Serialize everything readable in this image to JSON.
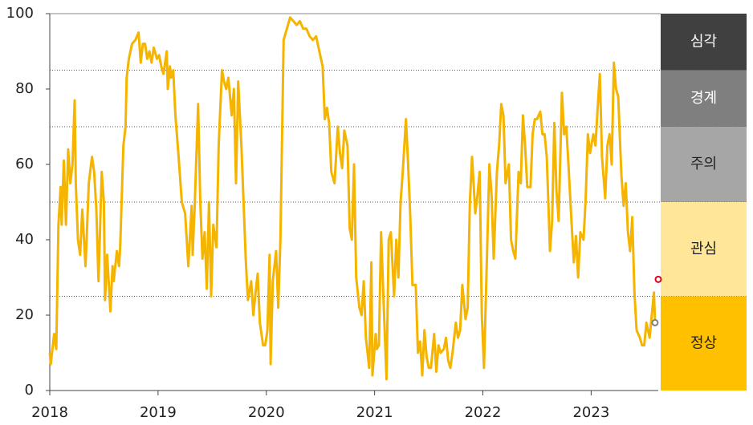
{
  "chart_data": {
    "type": "line",
    "color": "#f5b400",
    "xlim": [
      2018,
      2023.62
    ],
    "xticks": [
      2018,
      2019,
      2020,
      2021,
      2022,
      2023
    ],
    "ylim": [
      0,
      100
    ],
    "yticks": [
      0,
      20,
      40,
      60,
      80,
      100
    ],
    "x": [
      2018.0,
      2018.01,
      2018.04,
      2018.06,
      2018.08,
      2018.1,
      2018.11,
      2018.13,
      2018.15,
      2018.17,
      2018.19,
      2018.21,
      2018.23,
      2018.24,
      2018.26,
      2018.28,
      2018.3,
      2018.33,
      2018.34,
      2018.36,
      2018.39,
      2018.41,
      2018.43,
      2018.45,
      2018.46,
      2018.48,
      2018.5,
      2018.51,
      2018.53,
      2018.56,
      2018.58,
      2018.59,
      2018.62,
      2018.64,
      2018.65,
      2018.68,
      2018.7,
      2018.71,
      2018.73,
      2018.76,
      2018.79,
      2018.82,
      2018.84,
      2018.86,
      2018.88,
      2018.9,
      2018.92,
      2018.94,
      2018.96,
      2018.99,
      2019.01,
      2019.03,
      2019.05,
      2019.08,
      2019.09,
      2019.11,
      2019.12,
      2019.14,
      2019.16,
      2019.19,
      2019.22,
      2019.25,
      2019.28,
      2019.31,
      2019.32,
      2019.34,
      2019.37,
      2019.39,
      2019.41,
      2019.43,
      2019.45,
      2019.47,
      2019.49,
      2019.51,
      2019.54,
      2019.56,
      2019.59,
      2019.61,
      2019.63,
      2019.65,
      2019.68,
      2019.7,
      2019.72,
      2019.74,
      2019.77,
      2019.79,
      2019.81,
      2019.83,
      2019.86,
      2019.88,
      2019.9,
      2019.92,
      2019.94,
      2019.97,
      2019.99,
      2020.01,
      2020.03,
      2020.04,
      2020.06,
      2020.09,
      2020.11,
      2020.13,
      2020.16,
      2020.19,
      2020.22,
      2020.25,
      2020.28,
      2020.31,
      2020.34,
      2020.37,
      2020.4,
      2020.43,
      2020.46,
      2020.49,
      2020.52,
      2020.54,
      2020.56,
      2020.58,
      2020.6,
      2020.63,
      2020.66,
      2020.68,
      2020.7,
      2020.72,
      2020.75,
      2020.77,
      2020.79,
      2020.81,
      2020.83,
      2020.86,
      2020.88,
      2020.9,
      2020.92,
      2020.95,
      2020.97,
      2020.98,
      2021.01,
      2021.02,
      2021.04,
      2021.06,
      2021.09,
      2021.11,
      2021.13,
      2021.15,
      2021.18,
      2021.2,
      2021.22,
      2021.24,
      2021.26,
      2021.29,
      2021.31,
      2021.33,
      2021.35,
      2021.38,
      2021.4,
      2021.42,
      2021.44,
      2021.46,
      2021.48,
      2021.5,
      2021.52,
      2021.55,
      2021.57,
      2021.59,
      2021.61,
      2021.64,
      2021.66,
      2021.68,
      2021.7,
      2021.72,
      2021.75,
      2021.77,
      2021.79,
      2021.81,
      2021.84,
      2021.86,
      2021.88,
      2021.9,
      2021.93,
      2021.95,
      2021.97,
      2021.99,
      2022.01,
      2022.04,
      2022.06,
      2022.08,
      2022.1,
      2022.13,
      2022.15,
      2022.17,
      2022.19,
      2022.21,
      2022.24,
      2022.26,
      2022.28,
      2022.3,
      2022.33,
      2022.35,
      2022.37,
      2022.39,
      2022.41,
      2022.44,
      2022.46,
      2022.48,
      2022.5,
      2022.53,
      2022.55,
      2022.57,
      2022.59,
      2022.62,
      2022.64,
      2022.66,
      2022.68,
      2022.7,
      2022.73,
      2022.75,
      2022.77,
      2022.79,
      2022.82,
      2022.84,
      2022.86,
      2022.88,
      2022.9,
      2022.93,
      2022.95,
      2022.97,
      2022.99,
      2023.02,
      2023.04,
      2023.06,
      2023.08,
      2023.1,
      2023.13,
      2023.15,
      2023.17,
      2023.19,
      2023.21,
      2023.23,
      2023.25,
      2023.28,
      2023.3,
      2023.32,
      2023.34,
      2023.36,
      2023.38,
      2023.4,
      2023.42,
      2023.45,
      2023.47,
      2023.49,
      2023.51,
      2023.54,
      2023.56,
      2023.58,
      2023.59
    ],
    "values": [
      10,
      7,
      15,
      11,
      44,
      54,
      44,
      61,
      44,
      64,
      55,
      60,
      77,
      55,
      40,
      36,
      48,
      33,
      40,
      55,
      62,
      58,
      48,
      29,
      38,
      58,
      50,
      24,
      36,
      21,
      33,
      29,
      37,
      33,
      38,
      65,
      70,
      83,
      88,
      92,
      93,
      95,
      87,
      92,
      92,
      88,
      90,
      87,
      91,
      88,
      89,
      86,
      84,
      90,
      80,
      86,
      83,
      85,
      73,
      62,
      50,
      47,
      33,
      49,
      36,
      50,
      76,
      50,
      35,
      42,
      27,
      50,
      25,
      44,
      38,
      65,
      85,
      82,
      80,
      83,
      73,
      80,
      55,
      82,
      65,
      50,
      35,
      24,
      29,
      20,
      26,
      31,
      18,
      12,
      12,
      16,
      36,
      7,
      29,
      37,
      22,
      40,
      93,
      96,
      99,
      98,
      97,
      98,
      96,
      96,
      94,
      93,
      94,
      90,
      86,
      72,
      75,
      71,
      58,
      55,
      70,
      63,
      59,
      69,
      65,
      43,
      40,
      60,
      30,
      22,
      20,
      29,
      14,
      6,
      34,
      4,
      15,
      11,
      12,
      42,
      18,
      3,
      40,
      42,
      25,
      40,
      30,
      50,
      58,
      72,
      60,
      46,
      28,
      28,
      10,
      13,
      4,
      16,
      9,
      6,
      6,
      15,
      5,
      12,
      10,
      11,
      14,
      8,
      6,
      10,
      18,
      14,
      16,
      28,
      19,
      22,
      50,
      62,
      47,
      52,
      58,
      20,
      6,
      38,
      60,
      52,
      35,
      58,
      65,
      76,
      73,
      55,
      60,
      40,
      37,
      35,
      58,
      55,
      73,
      65,
      54,
      54,
      68,
      72,
      72,
      74,
      68,
      68,
      62,
      37,
      45,
      71,
      53,
      45,
      79,
      68,
      70,
      60,
      44,
      34,
      41,
      30,
      42,
      40,
      51,
      68,
      63,
      68,
      65,
      75,
      84,
      62,
      51,
      65,
      68,
      60,
      87,
      80,
      78,
      57,
      49,
      55,
      42,
      37,
      46,
      26,
      16,
      14,
      12,
      12,
      18,
      14,
      20,
      26,
      18
    ],
    "markers": [
      {
        "x": 2023.62,
        "value": 29.5,
        "color": "#e0001b"
      },
      {
        "x": 2023.59,
        "value": 18,
        "color": "#808080"
      }
    ],
    "bands": [
      {
        "label": "심각",
        "from": 85,
        "to": 100,
        "color": "#404040",
        "text_color": "#ffffff"
      },
      {
        "label": "경계",
        "from": 70,
        "to": 85,
        "color": "#7f7f7f",
        "text_color": "#ffffff"
      },
      {
        "label": "주의",
        "from": 50,
        "to": 70,
        "color": "#a6a6a6",
        "text_color": "#222222"
      },
      {
        "label": "관심",
        "from": 25,
        "to": 50,
        "color": "#ffe699",
        "text_color": "#222222"
      },
      {
        "label": "정상",
        "from": 0,
        "to": 25,
        "color": "#ffc000",
        "text_color": "#222222"
      }
    ]
  }
}
